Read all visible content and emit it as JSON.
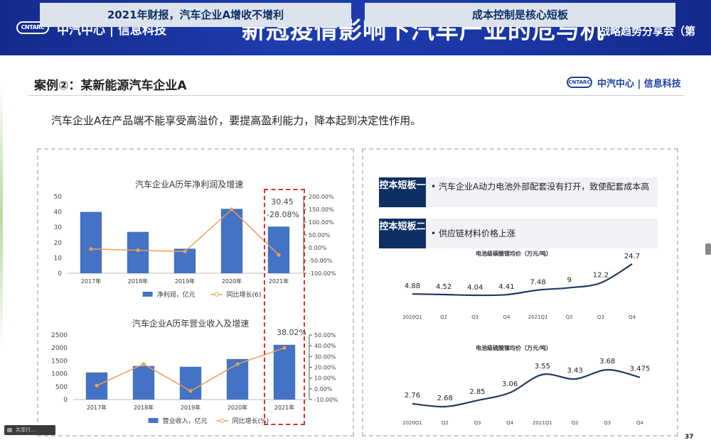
{
  "banner": {
    "logo_text": "CNTARC",
    "org": "中汽中心 | 信息科技",
    "title": "新冠疫情影响下汽车产业的危与机",
    "subtitle": "战略趋势分享会（第"
  },
  "header": {
    "title": "案例②：某新能源汽车企业A",
    "logo_text": "CNTARC",
    "org": "中汽中心 | 信息科技"
  },
  "intro": "汽车企业A在产品端不能享受高溢价，要提高盈利能力，降本起到决定性作用。",
  "left_panel": {
    "heading": "2021年财报，汽车企业A增收不增利"
  },
  "right_panel": {
    "heading": "成本控制是核心短板",
    "items": [
      {
        "tag": "控本短板一",
        "text": "汽车企业A动力电池外部配套没有打开，致使配套成本高"
      },
      {
        "tag": "控本短板二",
        "text": "供应链材料价格上涨"
      }
    ]
  },
  "colors": {
    "bar": "#4472c4",
    "line": "#ed9d55",
    "navy": "#0e2f63",
    "curve": "#1f3864",
    "highlight": "#d93030"
  },
  "chart_data": [
    {
      "type": "bar",
      "title": "汽车企业A历年净利润及增速",
      "categories": [
        "2017年",
        "2018年",
        "2019年",
        "2020年",
        "2021年"
      ],
      "series": [
        {
          "name": "净利润，亿元",
          "values": [
            40,
            27,
            16,
            42,
            30.45
          ],
          "axis": "left"
        },
        {
          "name": "同比增长(6)",
          "values": [
            -5,
            -10,
            -15,
            150,
            -28.08
          ],
          "axis": "right"
        }
      ],
      "ylim": [
        0,
        50
      ],
      "yticks": [
        "0",
        "10",
        "20",
        "30",
        "40",
        "50"
      ],
      "y2lim": [
        -100,
        200
      ],
      "y2ticks": [
        "-100.00%",
        "-50.00%",
        "0.00%",
        "50.00%",
        "100.00%",
        "150.00%",
        "200.00%"
      ],
      "annotations": [
        "30.45",
        "-28.08%"
      ],
      "legend": "bottom"
    },
    {
      "type": "bar",
      "title": "汽车企业A历年营业收入及增速",
      "categories": [
        "2017年",
        "2018年",
        "2019年",
        "2020年",
        "2021年"
      ],
      "series": [
        {
          "name": "营业收入，亿元",
          "values": [
            1050,
            1300,
            1270,
            1570,
            2120
          ],
          "axis": "left"
        },
        {
          "name": "同比增长(%)",
          "values": [
            3,
            23,
            -2,
            23,
            38.02
          ],
          "axis": "right"
        }
      ],
      "ylim": [
        0,
        2500
      ],
      "yticks": [
        "0",
        "500",
        "1000",
        "1500",
        "2000",
        "2500"
      ],
      "y2lim": [
        -10,
        50
      ],
      "y2ticks": [
        "-10.00%",
        "0.00%",
        "10.00%",
        "20.00%",
        "30.00%",
        "40.00%",
        "50.00%"
      ],
      "annotations": [
        "38.02%"
      ],
      "legend": "bottom"
    },
    {
      "type": "line",
      "title": "电池级碳酸锂均价（万元/吨）",
      "categories": [
        "2020Q1",
        "Q2",
        "Q3",
        "Q4",
        "2021Q1",
        "Q2",
        "Q3",
        "Q4"
      ],
      "values": [
        4.88,
        4.52,
        4.04,
        4.41,
        7.48,
        9,
        12.2,
        24.7
      ],
      "labels": [
        "4.88",
        "4.52",
        "4.04",
        "4.41",
        "7.48",
        "9",
        "12.2",
        "24.7"
      ]
    },
    {
      "type": "line",
      "title": "电池级硫酸镍均价（万元/吨）",
      "categories": [
        "2020Q1",
        "Q2",
        "Q3",
        "Q4",
        "2021Q1",
        "Q2",
        "Q3",
        "Q4"
      ],
      "values": [
        2.76,
        2.68,
        2.85,
        3.06,
        3.55,
        3.43,
        3.68,
        3.475
      ],
      "labels": [
        "2.76",
        "2.68",
        "2.85",
        "3.06",
        "3.55",
        "3.43",
        "3.68",
        "3.475"
      ]
    }
  ],
  "page_number": "37",
  "taskbar_chip": "共享行..."
}
